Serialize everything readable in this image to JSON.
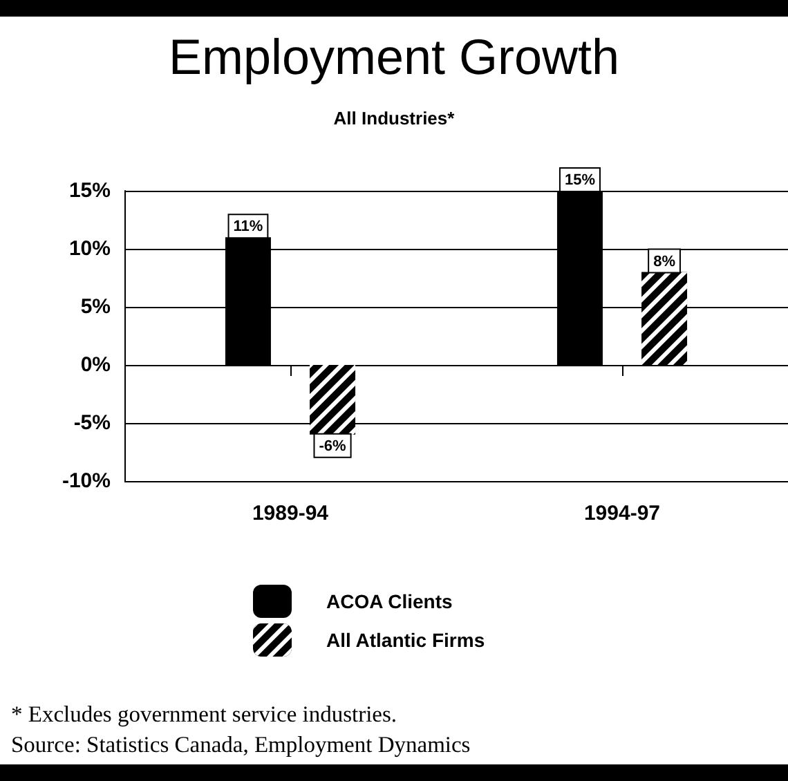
{
  "chart_data": {
    "type": "bar",
    "title": "Employment Growth",
    "subtitle": "All Industries*",
    "categories": [
      "1989-94",
      "1994-97"
    ],
    "series": [
      {
        "name": "ACOA Clients",
        "color": "#000000",
        "values": [
          11,
          15
        ],
        "value_labels": [
          "11%",
          "15%"
        ]
      },
      {
        "name": "All Atlantic Firms",
        "color": "#000000",
        "values": [
          -6,
          8
        ],
        "value_labels": [
          "-6%",
          "8%"
        ]
      }
    ],
    "ylim": [
      -10,
      15
    ],
    "yticks": [
      {
        "value": -10,
        "label": "-10%"
      },
      {
        "value": -5,
        "label": "-5%"
      },
      {
        "value": 0,
        "label": "0%"
      },
      {
        "value": 5,
        "label": "5%"
      },
      {
        "value": 10,
        "label": "10%"
      },
      {
        "value": 15,
        "label": "15%"
      }
    ],
    "grid": "y",
    "legend": "bottom",
    "annotations": [
      "* Excludes government service industries.",
      "Source: Statistics Canada, Employment Dynamics"
    ]
  }
}
